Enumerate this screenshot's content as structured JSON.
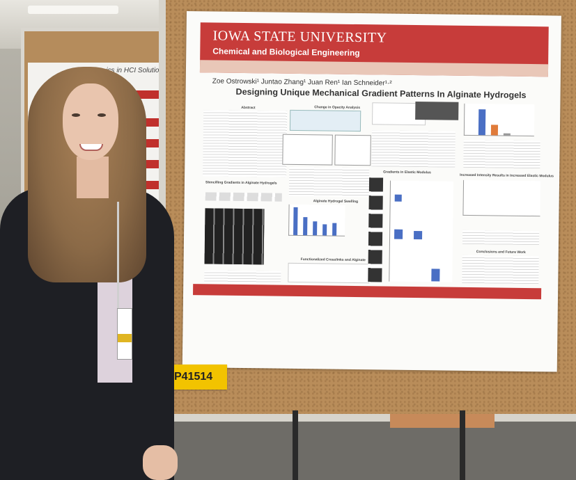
{
  "scene": {
    "poster_header": {
      "university": "IOWA STATE UNIVERSITY",
      "department": "Chemical and Biological Engineering"
    },
    "authors": "Zoe Ostrowski¹  Juntao Zhang¹  Juan Ren¹  Ian Schneider¹·²",
    "poster_title": "Designing Unique Mechanical Gradient Patterns In Alginate Hydrogels",
    "section_titles": {
      "abstract": "Abstract",
      "stencilling": "Stencilling Gradients in Alginate Hydrogels",
      "change_opacity": "Change in Opacity Analysis",
      "swelling": "Alginate Hydrogel Swelling",
      "functionalized": "Functionalized Crosslinks and Alginate",
      "gradients_elastic": "Gradients in Elastic Modulus",
      "intensity_elastic": "Increased Intensity Results in Increased Elastic Modulus",
      "conclusions": "Conclusions and Future Work"
    },
    "left_poster_title": "...ics in HCI Solutions",
    "board_label": "P41514",
    "colors": {
      "poster_red": "#c73c3a",
      "label_yellow": "#f2c300",
      "cork": "#b98d5a"
    }
  }
}
